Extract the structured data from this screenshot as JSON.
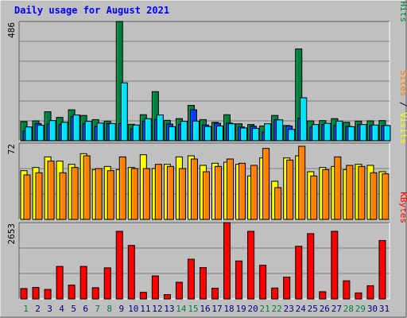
{
  "chart_data": [
    {
      "type": "bar",
      "title": "Daily usage for August 2021",
      "categories": [
        "1",
        "2",
        "3",
        "4",
        "5",
        "6",
        "7",
        "8",
        "9",
        "10",
        "11",
        "12",
        "13",
        "14",
        "15",
        "16",
        "17",
        "18",
        "19",
        "20",
        "21",
        "22",
        "23",
        "24",
        "25",
        "26",
        "27",
        "28",
        "29",
        "30",
        "31"
      ],
      "weekend_days": [
        "1",
        "7",
        "8",
        "14",
        "15",
        "21",
        "22",
        "28",
        "29"
      ],
      "ymax_label": "486",
      "ylim": [
        0,
        486
      ],
      "series": [
        {
          "name": "Hits",
          "color": "#008040",
          "values": [
            78,
            81,
            118,
            95,
            126,
            103,
            86,
            80,
            486,
            67,
            106,
            200,
            83,
            90,
            144,
            86,
            75,
            106,
            69,
            66,
            60,
            103,
            62,
            374,
            81,
            82,
            90,
            75,
            80,
            81,
            82
          ]
        },
        {
          "name": "Files",
          "color": "#0040ff",
          "values": [
            40,
            70,
            68,
            66,
            98,
            69,
            58,
            70,
            70,
            48,
            80,
            87,
            68,
            66,
            126,
            64,
            71,
            72,
            56,
            59,
            35,
            85,
            60,
            92,
            55,
            66,
            62,
            58,
            66,
            62,
            62
          ]
        },
        {
          "name": "Pages",
          "color": "#00e0ff",
          "values": [
            56,
            63,
            82,
            75,
            105,
            79,
            72,
            70,
            236,
            64,
            90,
            105,
            57,
            79,
            80,
            58,
            60,
            69,
            52,
            50,
            69,
            85,
            46,
            175,
            66,
            71,
            80,
            57,
            66,
            64,
            62
          ]
        }
      ],
      "ylabel_parts": [
        "Pages",
        " / ",
        "Files",
        " / ",
        "Hits"
      ],
      "ylabel_colors": [
        "#00e0ff",
        "#000000",
        "#0040ff",
        "#000000",
        "#008040"
      ]
    },
    {
      "type": "bar",
      "ymax_label": "72",
      "ylim": [
        0,
        72
      ],
      "series": [
        {
          "name": "Visits",
          "color": "#ffff00",
          "values": [
            46,
            49,
            59,
            55,
            52,
            62,
            47,
            50,
            47,
            49,
            61,
            48,
            52,
            59,
            60,
            51,
            53,
            54,
            52,
            41,
            58,
            36,
            58,
            60,
            45,
            49,
            50,
            47,
            52,
            51,
            45
          ]
        },
        {
          "name": "Sites",
          "color": "#ff8000",
          "values": [
            42,
            44,
            55,
            44,
            49,
            60,
            48,
            46,
            59,
            48,
            48,
            52,
            50,
            48,
            57,
            45,
            50,
            57,
            53,
            51,
            67,
            30,
            56,
            69,
            41,
            47,
            59,
            51,
            50,
            44,
            43
          ]
        }
      ],
      "ylabel_parts": [
        "Sites",
        " / ",
        "Visits"
      ],
      "ylabel_colors": [
        "#ff8000",
        "#000000",
        "#ffff00"
      ]
    },
    {
      "type": "bar",
      "ymax_label": "2653",
      "ylim": [
        0,
        2653
      ],
      "series": [
        {
          "name": "KBytes",
          "color": "#ff0000",
          "values": [
            360,
            400,
            330,
            1130,
            480,
            1130,
            390,
            1080,
            2350,
            1860,
            230,
            800,
            150,
            580,
            1380,
            1090,
            370,
            2653,
            1320,
            2350,
            1170,
            380,
            760,
            1830,
            2270,
            250,
            2350,
            630,
            210,
            460,
            2030
          ]
        }
      ],
      "ylabel_parts": [
        "KBytes"
      ],
      "ylabel_colors": [
        "#ff0000"
      ]
    }
  ],
  "colors": {
    "panel_bg": "#c0c0c0",
    "title": "#0000ff",
    "weekday_label": "#000080",
    "weekend_label": "#00804080"
  }
}
